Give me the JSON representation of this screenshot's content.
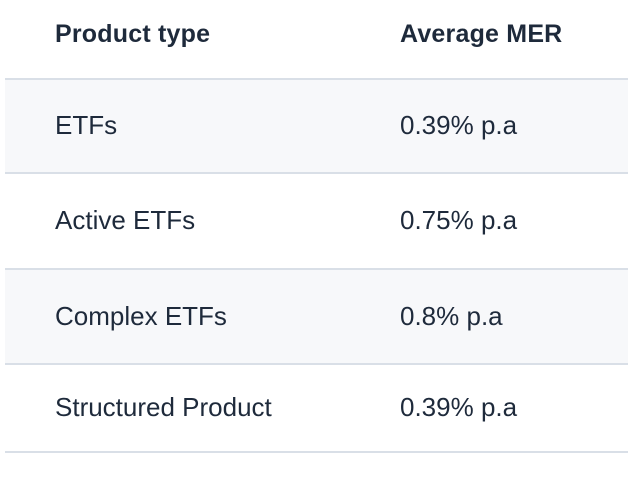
{
  "colors": {
    "text": "#1e2a3b",
    "stripe": "#f7f8fa",
    "border": "#d9dfe7",
    "background": "#ffffff"
  },
  "table": {
    "columns": [
      {
        "label": "Product type"
      },
      {
        "label": "Average MER"
      }
    ],
    "rows": [
      {
        "product_type": "ETFs",
        "average_mer": "0.39% p.a"
      },
      {
        "product_type": "Active ETFs",
        "average_mer": "0.75% p.a"
      },
      {
        "product_type": "Complex ETFs",
        "average_mer": "0.8% p.a"
      },
      {
        "product_type": "Structured Product",
        "average_mer": "0.39% p.a"
      }
    ]
  },
  "chart_data": {
    "type": "table",
    "title": "",
    "columns": [
      "Product type",
      "Average MER"
    ],
    "rows": [
      [
        "ETFs",
        "0.39% p.a"
      ],
      [
        "Active ETFs",
        "0.75% p.a"
      ],
      [
        "Complex ETFs",
        "0.8% p.a"
      ],
      [
        "Structured Product",
        "0.39% p.a"
      ]
    ],
    "mer_percent_pa": {
      "ETFs": 0.39,
      "Active ETFs": 0.75,
      "Complex ETFs": 0.8,
      "Structured Product": 0.39
    },
    "layout_hints": {
      "striped_rows": true,
      "stripe_on_rows": [
        1,
        3
      ],
      "header_bold": true
    }
  }
}
